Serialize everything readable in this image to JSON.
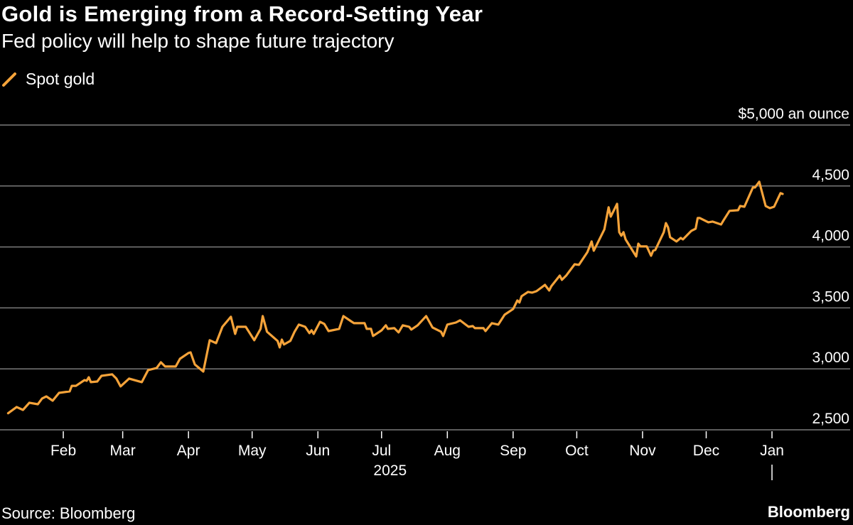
{
  "title": "Gold is Emerging from a Record-Setting Year",
  "subtitle": "Fed policy will help to shape future trajectory",
  "source": "Source: Bloomberg",
  "brand": "Bloomberg",
  "colors": {
    "background": "#000000",
    "line": "#f5a33a",
    "grid": "#7a7a7a",
    "text": "#ffffff"
  },
  "chart_data": {
    "type": "line",
    "title": "Gold is Emerging from a Record-Setting Year",
    "subtitle": "Fed policy will help to shape future trajectory",
    "legend": {
      "placement": "top-left",
      "entries": [
        "Spot gold"
      ]
    },
    "grid": true,
    "ylim": [
      2500,
      5000
    ],
    "yticks": [
      2500,
      3000,
      3500,
      4000,
      4500,
      5000
    ],
    "ytick_labels": [
      "2,500",
      "3,000",
      "3,500",
      "4,000",
      "4,500",
      "$5,000 an ounce"
    ],
    "y_axis_side": "right",
    "xlim": [
      "2025-01-01",
      "2026-01-15"
    ],
    "xticks": [
      "2025-02-01",
      "2025-03-01",
      "2025-04-01",
      "2025-05-01",
      "2025-06-01",
      "2025-07-01",
      "2025-08-01",
      "2025-09-01",
      "2025-10-01",
      "2025-11-01",
      "2025-12-01",
      "2026-01-01"
    ],
    "xtick_labels": [
      "Feb",
      "Mar",
      "Apr",
      "May",
      "Jun",
      "Jul",
      "Aug",
      "Sep",
      "Oct",
      "Nov",
      "Dec",
      "Jan"
    ],
    "x_year_label": "2025",
    "series": [
      {
        "name": "Spot gold",
        "points": [
          [
            "2025-01-06",
            2636
          ],
          [
            "2025-01-10",
            2687
          ],
          [
            "2025-01-13",
            2663
          ],
          [
            "2025-01-16",
            2722
          ],
          [
            "2025-01-20",
            2710
          ],
          [
            "2025-01-22",
            2757
          ],
          [
            "2025-01-24",
            2774
          ],
          [
            "2025-01-27",
            2739
          ],
          [
            "2025-01-30",
            2803
          ],
          [
            "2025-02-04",
            2815
          ],
          [
            "2025-02-05",
            2861
          ],
          [
            "2025-02-07",
            2861
          ],
          [
            "2025-02-11",
            2908
          ],
          [
            "2025-02-12",
            2902
          ],
          [
            "2025-02-13",
            2931
          ],
          [
            "2025-02-14",
            2891
          ],
          [
            "2025-02-17",
            2896
          ],
          [
            "2025-02-19",
            2943
          ],
          [
            "2025-02-24",
            2955
          ],
          [
            "2025-02-26",
            2920
          ],
          [
            "2025-02-28",
            2856
          ],
          [
            "2025-03-04",
            2920
          ],
          [
            "2025-03-10",
            2891
          ],
          [
            "2025-03-13",
            2990
          ],
          [
            "2025-03-17",
            3007
          ],
          [
            "2025-03-19",
            3054
          ],
          [
            "2025-03-21",
            3019
          ],
          [
            "2025-03-26",
            3019
          ],
          [
            "2025-03-28",
            3083
          ],
          [
            "2025-04-01",
            3130
          ],
          [
            "2025-04-02",
            3135
          ],
          [
            "2025-04-04",
            3036
          ],
          [
            "2025-04-08",
            2978
          ],
          [
            "2025-04-11",
            3235
          ],
          [
            "2025-04-14",
            3211
          ],
          [
            "2025-04-17",
            3345
          ],
          [
            "2025-04-21",
            3427
          ],
          [
            "2025-04-23",
            3287
          ],
          [
            "2025-04-24",
            3345
          ],
          [
            "2025-04-28",
            3345
          ],
          [
            "2025-05-02",
            3235
          ],
          [
            "2025-05-05",
            3328
          ],
          [
            "2025-05-06",
            3433
          ],
          [
            "2025-05-08",
            3305
          ],
          [
            "2025-05-13",
            3229
          ],
          [
            "2025-05-14",
            3176
          ],
          [
            "2025-05-15",
            3240
          ],
          [
            "2025-05-16",
            3200
          ],
          [
            "2025-05-19",
            3229
          ],
          [
            "2025-05-21",
            3305
          ],
          [
            "2025-05-23",
            3363
          ],
          [
            "2025-05-26",
            3345
          ],
          [
            "2025-05-28",
            3293
          ],
          [
            "2025-05-29",
            3316
          ],
          [
            "2025-05-30",
            3287
          ],
          [
            "2025-06-02",
            3386
          ],
          [
            "2025-06-04",
            3369
          ],
          [
            "2025-06-06",
            3310
          ],
          [
            "2025-06-11",
            3328
          ],
          [
            "2025-06-13",
            3433
          ],
          [
            "2025-06-17",
            3386
          ],
          [
            "2025-06-18",
            3375
          ],
          [
            "2025-06-23",
            3375
          ],
          [
            "2025-06-24",
            3328
          ],
          [
            "2025-06-26",
            3328
          ],
          [
            "2025-06-27",
            3270
          ],
          [
            "2025-07-01",
            3316
          ],
          [
            "2025-07-03",
            3357
          ],
          [
            "2025-07-04",
            3328
          ],
          [
            "2025-07-07",
            3334
          ],
          [
            "2025-07-09",
            3299
          ],
          [
            "2025-07-11",
            3357
          ],
          [
            "2025-07-14",
            3345
          ],
          [
            "2025-07-15",
            3322
          ],
          [
            "2025-07-18",
            3357
          ],
          [
            "2025-07-22",
            3433
          ],
          [
            "2025-07-25",
            3340
          ],
          [
            "2025-07-29",
            3305
          ],
          [
            "2025-07-30",
            3270
          ],
          [
            "2025-08-01",
            3363
          ],
          [
            "2025-08-05",
            3380
          ],
          [
            "2025-08-07",
            3398
          ],
          [
            "2025-08-11",
            3345
          ],
          [
            "2025-08-13",
            3351
          ],
          [
            "2025-08-14",
            3334
          ],
          [
            "2025-08-18",
            3334
          ],
          [
            "2025-08-19",
            3310
          ],
          [
            "2025-08-22",
            3375
          ],
          [
            "2025-08-25",
            3363
          ],
          [
            "2025-08-28",
            3444
          ],
          [
            "2025-09-01",
            3491
          ],
          [
            "2025-09-03",
            3561
          ],
          [
            "2025-09-04",
            3544
          ],
          [
            "2025-09-05",
            3596
          ],
          [
            "2025-09-08",
            3631
          ],
          [
            "2025-09-10",
            3625
          ],
          [
            "2025-09-12",
            3637
          ],
          [
            "2025-09-16",
            3689
          ],
          [
            "2025-09-18",
            3643
          ],
          [
            "2025-09-19",
            3678
          ],
          [
            "2025-09-23",
            3765
          ],
          [
            "2025-09-24",
            3730
          ],
          [
            "2025-09-26",
            3765
          ],
          [
            "2025-09-30",
            3858
          ],
          [
            "2025-10-02",
            3853
          ],
          [
            "2025-10-06",
            3957
          ],
          [
            "2025-10-08",
            4045
          ],
          [
            "2025-10-09",
            3969
          ],
          [
            "2025-10-14",
            4144
          ],
          [
            "2025-10-16",
            4325
          ],
          [
            "2025-10-17",
            4249
          ],
          [
            "2025-10-20",
            4354
          ],
          [
            "2025-10-21",
            4121
          ],
          [
            "2025-10-22",
            4092
          ],
          [
            "2025-10-23",
            4121
          ],
          [
            "2025-10-24",
            4062
          ],
          [
            "2025-10-29",
            3922
          ],
          [
            "2025-10-30",
            4027
          ],
          [
            "2025-10-31",
            4004
          ],
          [
            "2025-11-03",
            4004
          ],
          [
            "2025-11-05",
            3928
          ],
          [
            "2025-11-06",
            3969
          ],
          [
            "2025-11-07",
            3975
          ],
          [
            "2025-11-11",
            4121
          ],
          [
            "2025-11-12",
            4196
          ],
          [
            "2025-11-13",
            4161
          ],
          [
            "2025-11-14",
            4080
          ],
          [
            "2025-11-17",
            4045
          ],
          [
            "2025-11-19",
            4074
          ],
          [
            "2025-11-20",
            4062
          ],
          [
            "2025-11-24",
            4132
          ],
          [
            "2025-11-26",
            4150
          ],
          [
            "2025-11-27",
            4237
          ],
          [
            "2025-11-28",
            4237
          ],
          [
            "2025-12-02",
            4202
          ],
          [
            "2025-12-04",
            4208
          ],
          [
            "2025-12-08",
            4184
          ],
          [
            "2025-12-09",
            4214
          ],
          [
            "2025-12-12",
            4296
          ],
          [
            "2025-12-16",
            4301
          ],
          [
            "2025-12-17",
            4336
          ],
          [
            "2025-12-19",
            4330
          ],
          [
            "2025-12-23",
            4488
          ],
          [
            "2025-12-24",
            4488
          ],
          [
            "2025-12-26",
            4535
          ],
          [
            "2025-12-29",
            4336
          ],
          [
            "2025-12-31",
            4318
          ],
          [
            "2026-01-02",
            4330
          ],
          [
            "2026-01-05",
            4441
          ],
          [
            "2026-01-06",
            4435
          ]
        ]
      }
    ]
  }
}
